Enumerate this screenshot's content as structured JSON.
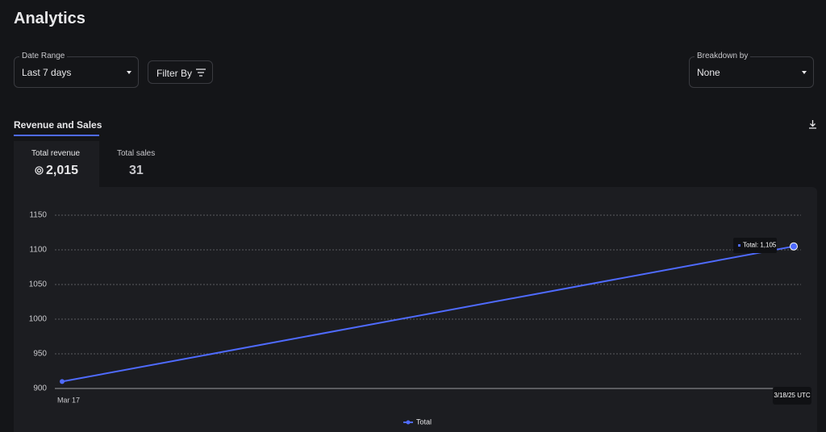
{
  "header": {
    "title": "Analytics"
  },
  "filters": {
    "date_range_label": "Date Range",
    "date_range_value": "Last 7 days",
    "filter_button": "Filter By",
    "breakdown_label": "Breakdown by",
    "breakdown_value": "None"
  },
  "tab": "Revenue and Sales",
  "metrics": [
    {
      "label": "Total revenue",
      "value": "2,015"
    },
    {
      "label": "Total sales",
      "value": "31"
    }
  ],
  "chart_data": {
    "type": "line",
    "categories": [
      "Mar 17",
      "3/18/25 UTC"
    ],
    "series": [
      {
        "name": "Total",
        "color": "#4f6bff",
        "values": [
          910,
          1105
        ]
      }
    ],
    "tooltip": "Total: 1,105",
    "ylim": [
      900,
      1150
    ],
    "yticks": [
      900,
      950,
      1000,
      1050,
      1100,
      1150
    ],
    "grid": true
  }
}
